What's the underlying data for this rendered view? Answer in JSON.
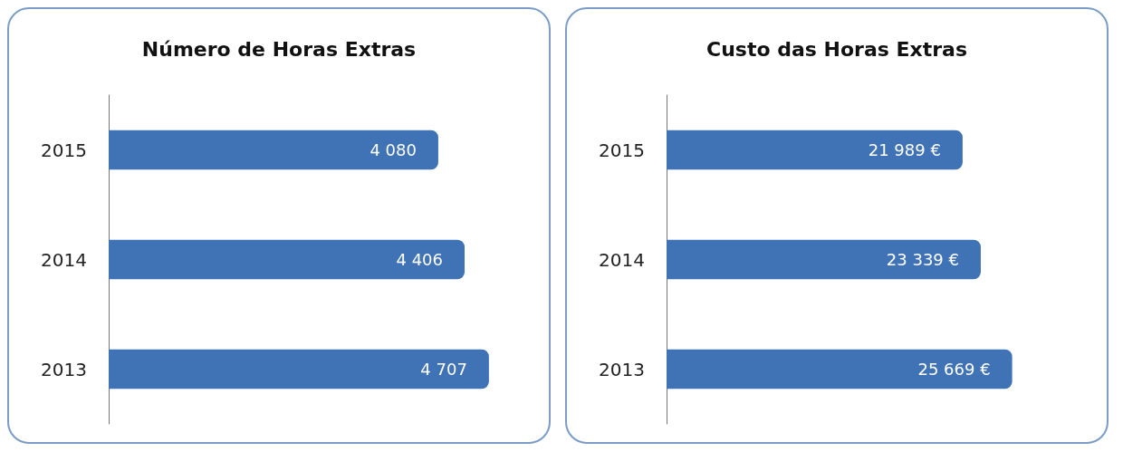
{
  "chart_data": [
    {
      "type": "bar",
      "title": "Número de Horas Extras",
      "orientation": "horizontal",
      "categories": [
        "2015",
        "2014",
        "2013"
      ],
      "values": [
        4080,
        4406,
        4707
      ],
      "value_labels": [
        "4 080",
        "4 406",
        "4 707"
      ],
      "color": "#3f73b5"
    },
    {
      "type": "bar",
      "title": "Custo das Horas Extras",
      "orientation": "horizontal",
      "categories": [
        "2015",
        "2014",
        "2013"
      ],
      "values": [
        21989,
        23339,
        25669
      ],
      "value_labels": [
        "21 989 €",
        "23 339 €",
        "25 669 €"
      ],
      "color": "#3f73b5"
    }
  ]
}
